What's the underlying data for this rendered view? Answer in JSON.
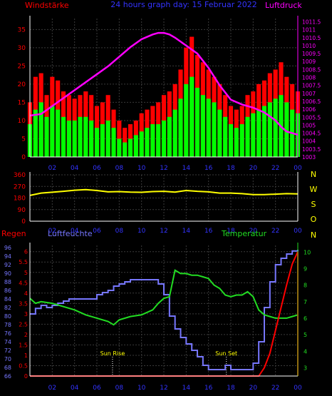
{
  "chart_data": [
    {
      "type": "bar",
      "title": "24 hours graph day: 15 Februar 2022",
      "ylabel_left": "Windstärke",
      "ylabel_right": "Luftdruck",
      "x_ticks": [
        "02",
        "04",
        "06",
        "08",
        "10",
        "12",
        "14",
        "16",
        "18",
        "20",
        "22",
        "00"
      ],
      "y_left_ticks": [
        "0",
        "5",
        "10",
        "15",
        "20",
        "25",
        "30",
        "35"
      ],
      "y_left_range": [
        0,
        38
      ],
      "y_right_ticks": [
        "1003",
        "1003.5",
        "1004",
        "1004.5",
        "1005",
        "1005.5",
        "1006",
        "1006.5",
        "1007",
        "1007.5",
        "1008",
        "1008.5",
        "1009",
        "1009.5",
        "1010",
        "1010.5",
        "1011",
        "1011.5"
      ],
      "y_right_range": [
        1003,
        1011.7
      ],
      "series": [
        {
          "name": "Windstärke",
          "kind": "gust-bars",
          "color": "#ff0000",
          "hours": [
            0.0,
            0.5,
            1.0,
            1.5,
            2.0,
            2.5,
            3.0,
            3.5,
            4.0,
            4.5,
            5.0,
            5.5,
            6.0,
            6.5,
            7.0,
            7.5,
            8.0,
            8.5,
            9.0,
            9.5,
            10.0,
            10.5,
            11.0,
            11.5,
            12.0,
            12.5,
            13.0,
            13.5,
            14.0,
            14.5,
            15.0,
            15.5,
            16.0,
            16.5,
            17.0,
            17.5,
            18.0,
            18.5,
            19.0,
            19.5,
            20.0,
            20.5,
            21.0,
            21.5,
            22.0,
            22.5,
            23.0,
            23.5,
            24.0
          ],
          "values": [
            15,
            22,
            23,
            17,
            22,
            21,
            18,
            17,
            16,
            17,
            18,
            17,
            14,
            15,
            17,
            13,
            10,
            8,
            9,
            10,
            12,
            13,
            14,
            15,
            17,
            18,
            20,
            24,
            30,
            33,
            28,
            26,
            24,
            22,
            20,
            17,
            14,
            13,
            14,
            17,
            18,
            20,
            21,
            23,
            24,
            26,
            22,
            20,
            18
          ]
        },
        {
          "name": "Windmittel",
          "kind": "mean-bars",
          "color": "#00ff00",
          "hours": [
            0.0,
            0.5,
            1.0,
            1.5,
            2.0,
            2.5,
            3.0,
            3.5,
            4.0,
            4.5,
            5.0,
            5.5,
            6.0,
            6.5,
            7.0,
            7.5,
            8.0,
            8.5,
            9.0,
            9.5,
            10.0,
            10.5,
            11.0,
            11.5,
            12.0,
            12.5,
            13.0,
            13.5,
            14.0,
            14.5,
            15.0,
            15.5,
            16.0,
            16.5,
            17.0,
            17.5,
            18.0,
            18.5,
            19.0,
            19.5,
            20.0,
            20.5,
            21.0,
            21.5,
            22.0,
            22.5,
            23.0,
            23.5,
            24.0
          ],
          "values": [
            9,
            13,
            15,
            11,
            14,
            13,
            11,
            10,
            10,
            11,
            11,
            10,
            8,
            9,
            10,
            8,
            5,
            4,
            5,
            6,
            7,
            8,
            9,
            9,
            10,
            11,
            13,
            16,
            20,
            22,
            19,
            17,
            16,
            15,
            13,
            11,
            9,
            8,
            9,
            11,
            12,
            13,
            14,
            15,
            16,
            17,
            15,
            13,
            12
          ]
        },
        {
          "name": "Luftdruck",
          "kind": "line",
          "color": "#ff00ff",
          "axis": "right",
          "hours": [
            0,
            1,
            2,
            3,
            4,
            5,
            6,
            7,
            8,
            9,
            10,
            11,
            11.5,
            12,
            12.5,
            13,
            14,
            15,
            16,
            17,
            18,
            19,
            20,
            21,
            22,
            22.5,
            23,
            23.5,
            24
          ],
          "values": [
            1005.6,
            1005.7,
            1006.2,
            1006.7,
            1007.2,
            1007.7,
            1008.2,
            1008.7,
            1009.3,
            1009.9,
            1010.4,
            1010.7,
            1010.8,
            1010.8,
            1010.7,
            1010.5,
            1010.0,
            1009.5,
            1008.6,
            1007.5,
            1006.6,
            1006.3,
            1006.1,
            1005.8,
            1005.3,
            1004.9,
            1004.6,
            1004.5,
            1004.4
          ]
        }
      ]
    },
    {
      "type": "line",
      "ylabel": "",
      "x_ticks": [
        "02",
        "04",
        "06",
        "08",
        "10",
        "12",
        "14",
        "16",
        "18",
        "20",
        "22",
        "00"
      ],
      "y_ticks": [
        "0",
        "90",
        "180",
        "270",
        "360"
      ],
      "y_range": [
        0,
        360
      ],
      "direction_labels": [
        "N",
        "W",
        "S",
        "O",
        "N"
      ],
      "series": [
        {
          "name": "Windrichtung",
          "color": "#ffff00",
          "hours": [
            0,
            1,
            2,
            3,
            4,
            5,
            6,
            7,
            8,
            9,
            10,
            11,
            12,
            13,
            14,
            15,
            16,
            17,
            18,
            19,
            20,
            21,
            22,
            23,
            24
          ],
          "values": [
            200,
            218,
            225,
            232,
            240,
            245,
            238,
            228,
            230,
            226,
            224,
            230,
            232,
            226,
            238,
            232,
            228,
            218,
            218,
            214,
            206,
            206,
            210,
            214,
            212
          ]
        }
      ]
    },
    {
      "type": "line",
      "x_ticks": [
        "02",
        "04",
        "06",
        "08",
        "10",
        "12",
        "14",
        "16",
        "18",
        "20",
        "22",
        "00"
      ],
      "label_regen": "Regen",
      "label_luftfeuchte": "Luftfeuchte",
      "label_temperatur": "Temperatur",
      "regen_ticks": [
        "0",
        "0.5",
        "1",
        "1.5",
        "2",
        "2.5",
        "3",
        "3.5",
        "4",
        "4.5",
        "5",
        "5.5",
        "6"
      ],
      "regen_range": [
        0,
        6.3
      ],
      "feuchte_ticks": [
        "66",
        "68",
        "70",
        "72",
        "74",
        "76",
        "78",
        "80",
        "82",
        "84",
        "86",
        "88",
        "90",
        "92",
        "94",
        "96"
      ],
      "feuchte_range": [
        66,
        96.5
      ],
      "temp_ticks": [
        "3",
        "4",
        "5",
        "6",
        "7",
        "8",
        "9",
        "10"
      ],
      "temp_range": [
        2.5,
        10.4
      ],
      "annotations": [
        {
          "text": "Sun Rise",
          "hour": 7.4
        },
        {
          "text": "Sun Set",
          "hour": 17.6
        }
      ],
      "series": [
        {
          "name": "Luftfeuchte",
          "color": "#7777ff",
          "axis": "feuchte",
          "hours": [
            0,
            0.5,
            1,
            1.5,
            2,
            2.5,
            3,
            3.5,
            4,
            5,
            6,
            6.5,
            7,
            7.5,
            8,
            8.5,
            9,
            10,
            11,
            11.5,
            12,
            12.5,
            13,
            13.5,
            14,
            14.5,
            15,
            15.5,
            16,
            17,
            17.5,
            18,
            18.5,
            19,
            19.5,
            20,
            20.5,
            21,
            21.5,
            22,
            22.5,
            23,
            23.5,
            24
          ],
          "values": [
            80.5,
            81.8,
            82.5,
            82,
            82.5,
            83,
            83.5,
            84,
            84,
            84,
            85,
            85.5,
            86,
            87,
            87.5,
            88,
            88.5,
            88.5,
            88.5,
            87.5,
            85,
            80,
            77,
            75,
            73.5,
            72,
            70.5,
            68.5,
            67.5,
            67.5,
            68.5,
            67.5,
            67.5,
            67.5,
            67.5,
            69,
            74,
            82,
            88,
            92,
            93.5,
            94.5,
            95.2,
            95.5
          ]
        },
        {
          "name": "Temperatur",
          "color": "#22dd22",
          "axis": "temp",
          "hours": [
            0,
            0.5,
            1,
            2,
            3,
            4,
            5,
            6,
            7,
            7.5,
            8,
            9,
            10,
            11,
            11.5,
            12,
            12.5,
            13,
            13.5,
            14,
            14.5,
            15,
            15.5,
            16,
            16.5,
            17,
            17.5,
            18,
            18.5,
            19,
            19.5,
            20,
            20.5,
            21,
            21.5,
            22,
            22.5,
            23,
            23.5,
            24
          ],
          "values": [
            7.2,
            6.9,
            7.0,
            6.9,
            6.7,
            6.5,
            6.2,
            6.0,
            5.8,
            5.6,
            5.9,
            6.1,
            6.2,
            6.5,
            6.9,
            7.2,
            7.3,
            8.9,
            8.7,
            8.7,
            8.6,
            8.6,
            8.5,
            8.4,
            8.0,
            7.8,
            7.4,
            7.3,
            7.4,
            7.4,
            7.6,
            7.3,
            6.5,
            6.2,
            6.1,
            6.0,
            6.0,
            6.0,
            6.1,
            6.2
          ]
        },
        {
          "name": "Regen",
          "color": "#ff0000",
          "axis": "regen",
          "hours": [
            0,
            20.5,
            21,
            21.5,
            22,
            22.5,
            23,
            23.5,
            24
          ],
          "values": [
            0,
            0,
            0.4,
            1.1,
            2.2,
            3.3,
            4.4,
            5.4,
            6.0
          ]
        }
      ]
    }
  ]
}
